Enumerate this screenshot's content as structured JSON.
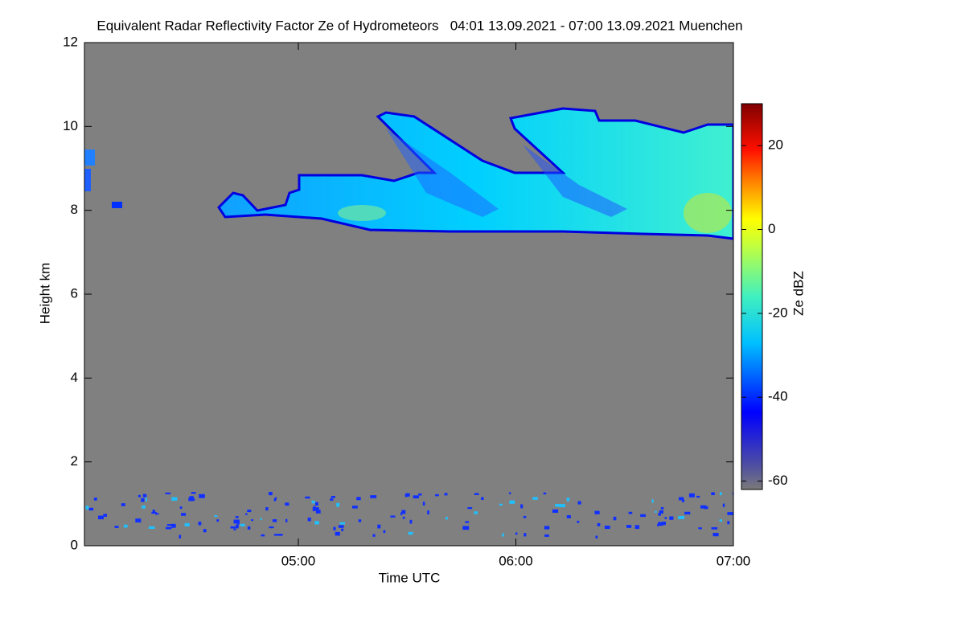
{
  "chart_data": {
    "type": "heatmap",
    "title": "Equivalent Radar Reflectivity Factor Ze of Hydrometeors   04:01 13.09.2021 - 07:00 13.09.2021 Muenchen",
    "xlabel": "Time UTC",
    "ylabel": "Height km",
    "colorbar_label": "Ze dBZ",
    "xlim": [
      4.0167,
      7
    ],
    "xticks": [
      {
        "value": 5,
        "label": "05:00"
      },
      {
        "value": 6,
        "label": "06:00"
      },
      {
        "value": 7,
        "label": "07:00"
      }
    ],
    "ylim": [
      0,
      12
    ],
    "yticks": [
      0,
      2,
      4,
      6,
      8,
      10,
      12
    ],
    "zlim": [
      -62,
      30
    ],
    "zticks": [
      -60,
      -40,
      -20,
      0,
      20
    ],
    "background_color": "#808080"
  }
}
